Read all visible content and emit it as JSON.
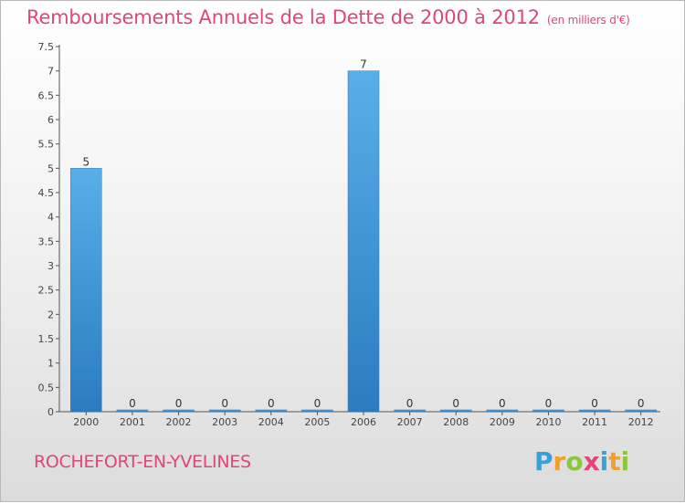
{
  "chart_data": {
    "type": "bar",
    "title": "Remboursements Annuels de la Dette de 2000 à 2012",
    "unit_note": "(en milliers d'€)",
    "categories": [
      "2000",
      "2001",
      "2002",
      "2003",
      "2004",
      "2005",
      "2006",
      "2007",
      "2008",
      "2009",
      "2010",
      "2011",
      "2012"
    ],
    "values": [
      5,
      0,
      0,
      0,
      0,
      0,
      7,
      0,
      0,
      0,
      0,
      0,
      0
    ],
    "data_labels": [
      "5",
      "0",
      "0",
      "0",
      "0",
      "0",
      "7",
      "0",
      "0",
      "0",
      "0",
      "0",
      "0"
    ],
    "y_ticks": [
      "0",
      "0.5",
      "1",
      "1.5",
      "2",
      "2.5",
      "3",
      "3.5",
      "4",
      "4.5",
      "5",
      "5.5",
      "6",
      "6.5",
      "7",
      "7.5"
    ],
    "ylim": [
      0,
      7.5
    ],
    "xlabel": "",
    "ylabel": "",
    "grid": false,
    "bar_color": "#3d9be0"
  },
  "footer": {
    "commune": "ROCHEFORT-EN-YVELINES",
    "logo": {
      "letters": [
        "P",
        "r",
        "o",
        "x",
        "i",
        "t",
        "i"
      ],
      "colors": [
        "#3aa0d8",
        "#f0a030",
        "#8cc63e",
        "#e0457b",
        "#3aa0d8",
        "#f0a030",
        "#8cc63e"
      ]
    }
  }
}
